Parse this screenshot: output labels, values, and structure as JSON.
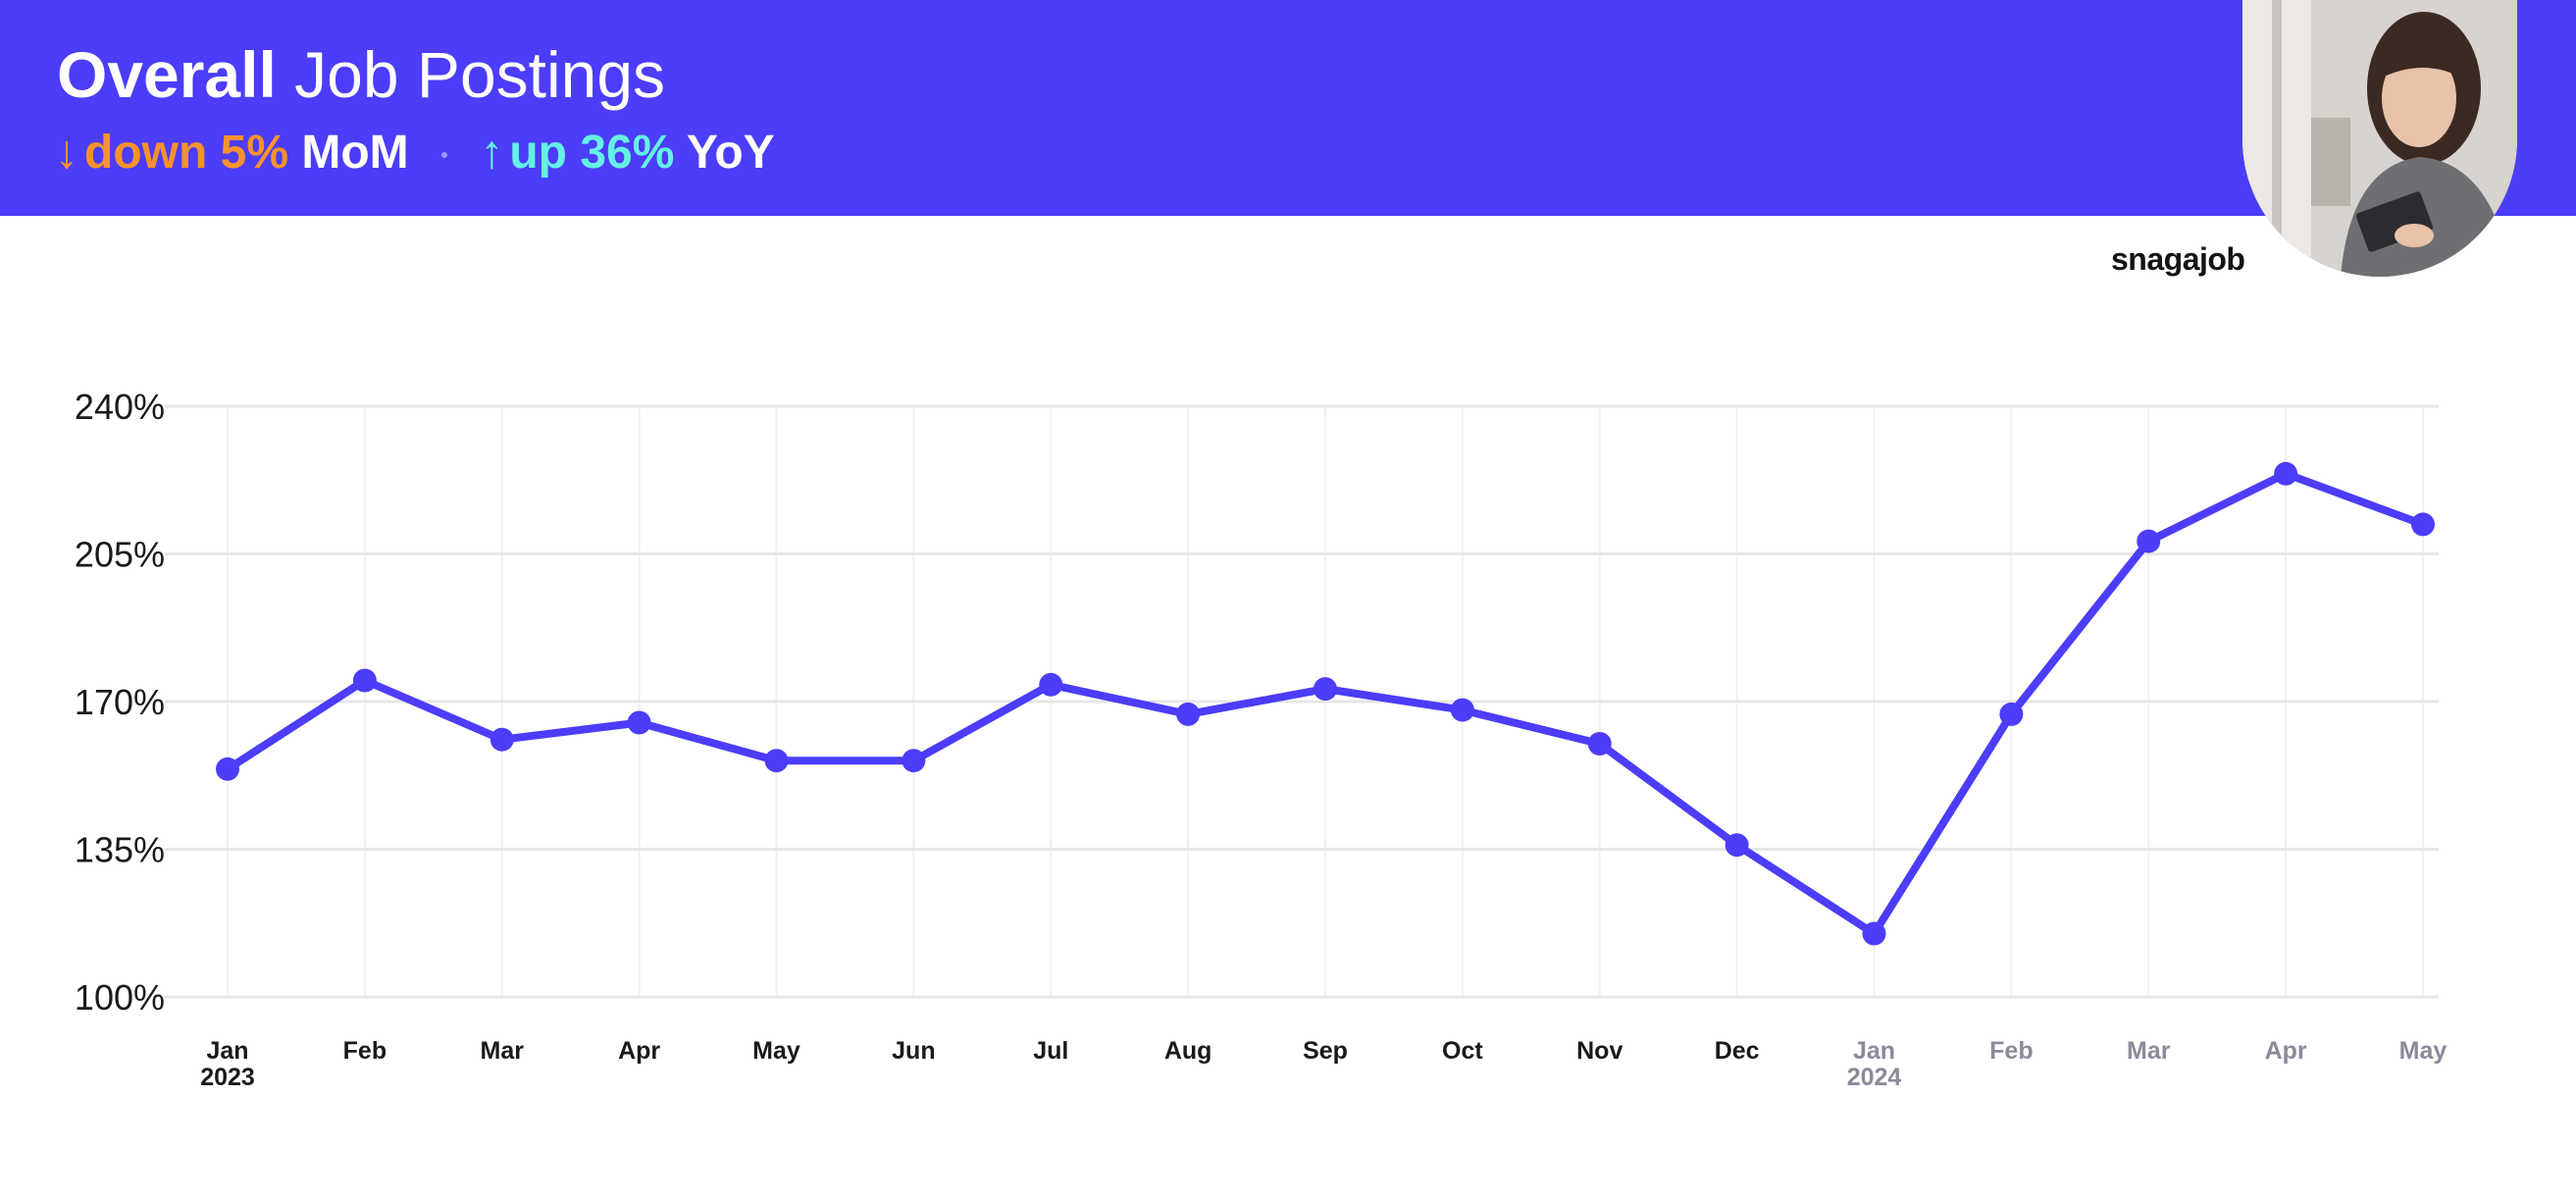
{
  "header": {
    "title_bold": "Overall",
    "title_light": "Job Postings",
    "mom_arrow": "↓",
    "mom_text": "down 5%",
    "mom_suffix": "MoM",
    "yoy_arrow": "↑",
    "yoy_text": "up 36%",
    "yoy_suffix": "YoY"
  },
  "brand": {
    "logo_text": "snagajob"
  },
  "colors": {
    "banner": "#4b3df9",
    "line": "#4b3df9",
    "down": "#f7922d",
    "up": "#65f0e6",
    "grid": "#e6e6e6",
    "axis_text": "#1a1a1a",
    "axis_text_muted": "#8a8a99"
  },
  "chart_data": {
    "type": "line",
    "categories": [
      "Jan",
      "Feb",
      "Mar",
      "Apr",
      "May",
      "Jun",
      "Jul",
      "Aug",
      "Sep",
      "Oct",
      "Nov",
      "Dec",
      "Jan",
      "Feb",
      "Mar",
      "Apr",
      "May"
    ],
    "years": [
      "2023",
      "",
      "",
      "",
      "",
      "",
      "",
      "",
      "",
      "",
      "",
      "",
      "2024",
      "",
      "",
      "",
      ""
    ],
    "muted_from_index": 12,
    "series": [
      {
        "values": [
          154,
          175,
          161,
          165,
          156,
          156,
          174,
          167,
          173,
          168,
          160,
          136,
          115,
          167,
          208,
          224,
          212
        ]
      }
    ],
    "y_ticks": [
      100,
      135,
      170,
      205,
      240
    ],
    "y_tick_labels": [
      "100%",
      "135%",
      "170%",
      "205%",
      "240%"
    ],
    "ylim": [
      100,
      240
    ],
    "grid": true,
    "title": "",
    "xlabel": "",
    "ylabel": ""
  }
}
